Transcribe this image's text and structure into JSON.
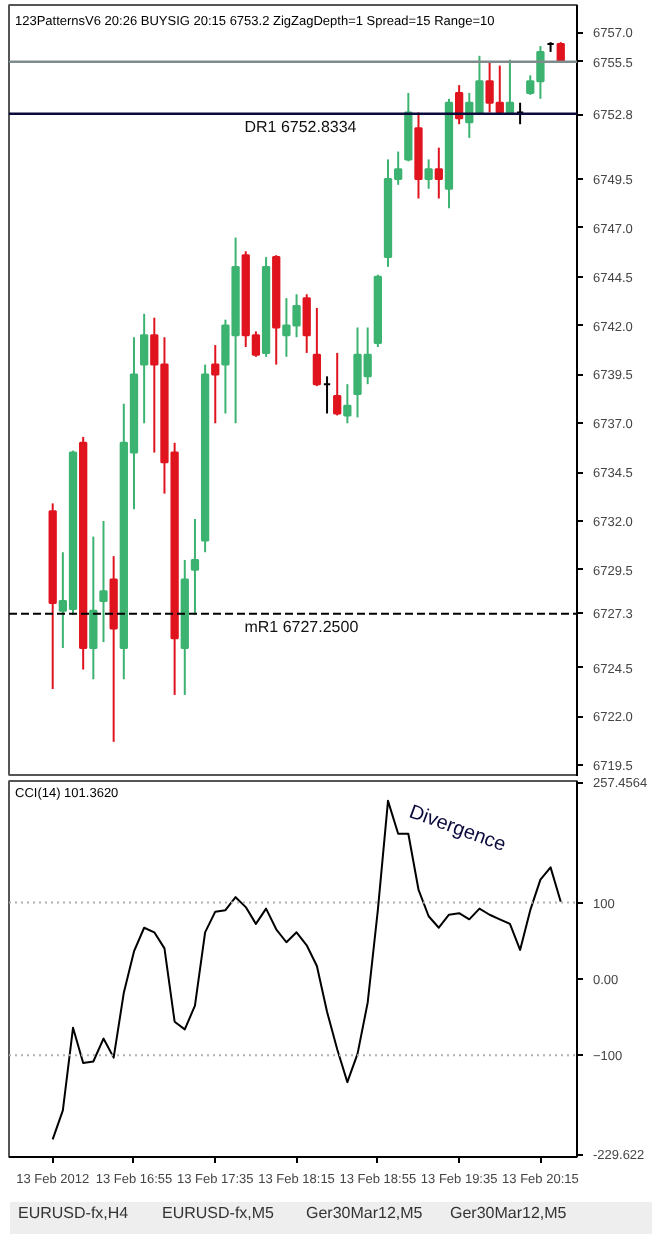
{
  "chart_data": [
    {
      "type": "candlestick",
      "title": "123PatternsV6  20:26  BUYSIG  20:15  6753.2  ZigZagDepth=1  Spread=15  Range=10",
      "categories": [
        null,
        null,
        null,
        null,
        null,
        null,
        null,
        null,
        null,
        null,
        null,
        null,
        null,
        null,
        null,
        null,
        null,
        null,
        null,
        null,
        null,
        null,
        null,
        null,
        null,
        null,
        null,
        null,
        null,
        null,
        null,
        null,
        null,
        null,
        null,
        null,
        null,
        null,
        null,
        null,
        null,
        null,
        null,
        null,
        null,
        null,
        null,
        null,
        null,
        null,
        null
      ],
      "ohlc": [
        [
          6732.5,
          6732.9,
          6723.4,
          6727.8
        ],
        [
          6727.4,
          6730.4,
          6725.5,
          6727.9
        ],
        [
          6727.5,
          6735.6,
          6727.2,
          6735.5
        ],
        [
          6736.0,
          6736.3,
          6724.4,
          6725.5
        ],
        [
          6725.5,
          6731.2,
          6723.9,
          6727.4
        ],
        [
          6727.9,
          6732.0,
          6725.8,
          6728.4
        ],
        [
          6729.0,
          6730.2,
          6720.7,
          6726.5
        ],
        [
          6725.5,
          6738.0,
          6723.9,
          6736.0
        ],
        [
          6735.5,
          6741.4,
          6732.6,
          6739.5
        ],
        [
          6740.0,
          6742.6,
          6737.0,
          6741.5
        ],
        [
          6741.5,
          6742.4,
          6735.5,
          6740.0
        ],
        [
          6740.0,
          6741.4,
          6733.4,
          6735.0
        ],
        [
          6735.5,
          6736.0,
          6723.1,
          6726.0
        ],
        [
          6725.5,
          6730.0,
          6723.1,
          6729.0
        ],
        [
          6729.5,
          6732.1,
          6727.2,
          6730.0
        ],
        [
          6731.0,
          6740.0,
          6730.4,
          6739.5
        ],
        [
          6740.0,
          6741.0,
          6737.0,
          6739.5
        ],
        [
          6740.0,
          6742.3,
          6737.5,
          6742.0
        ],
        [
          6741.5,
          6746.5,
          6737.0,
          6745.0
        ],
        [
          6745.6,
          6745.8,
          6740.9,
          6741.5
        ],
        [
          6741.5,
          6741.7,
          6740.4,
          6740.5
        ],
        [
          6740.6,
          6745.5,
          6740.4,
          6745.0
        ],
        [
          6745.5,
          6745.6,
          6740.0,
          6741.9
        ],
        [
          6741.5,
          6743.4,
          6740.4,
          6742.0
        ],
        [
          6742.0,
          6743.6,
          6741.4,
          6743.0
        ],
        [
          6743.4,
          6743.6,
          6740.6,
          6741.5
        ],
        [
          6740.5,
          6742.9,
          6738.9,
          6739.0
        ],
        [
          6739.0,
          6739.4,
          6737.5,
          6739.0
        ],
        [
          6738.4,
          6740.6,
          6737.4,
          6737.5
        ],
        [
          6737.4,
          6739.0,
          6737.0,
          6737.9
        ],
        [
          6738.5,
          6741.9,
          6737.3,
          6740.5
        ],
        [
          6739.4,
          6741.9,
          6739.0,
          6740.5
        ],
        [
          6741.1,
          6744.6,
          6740.9,
          6744.5
        ],
        [
          6745.5,
          6750.5,
          6745.0,
          6749.5
        ],
        [
          6749.5,
          6750.9,
          6749.2,
          6750.0
        ],
        [
          6750.5,
          6753.9,
          6750.4,
          6752.9
        ],
        [
          6752.1,
          6752.9,
          6748.5,
          6749.5
        ],
        [
          6749.5,
          6750.5,
          6749.0,
          6750.0
        ],
        [
          6750.0,
          6751.1,
          6748.5,
          6749.5
        ],
        [
          6749.0,
          6753.6,
          6748.0,
          6753.4
        ],
        [
          6753.9,
          6754.3,
          6752.3,
          6752.6
        ],
        [
          6752.4,
          6753.9,
          6751.6,
          6753.4
        ],
        [
          6752.9,
          6755.8,
          6752.9,
          6754.5
        ],
        [
          6754.5,
          6755.5,
          6752.9,
          6753.4
        ],
        [
          6753.4,
          6755.3,
          6752.9,
          6752.9
        ],
        [
          6752.9,
          6755.6,
          6752.9,
          6753.4
        ],
        [
          6752.9,
          6753.4,
          6752.3,
          6752.9
        ],
        [
          6753.9,
          6754.8,
          6753.8,
          6754.5
        ],
        [
          6754.5,
          6756.3,
          6753.6,
          6756.0
        ],
        [
          6756.4,
          6756.5,
          6756.0,
          6756.4
        ],
        [
          6756.4,
          6756.5,
          6755.5,
          6755.5
        ]
      ],
      "colors": [
        "#e0141e",
        "#3cb371",
        "#3cb371",
        "#e0141e",
        "#3cb371",
        "#3cb371",
        "#e0141e",
        "#3cb371",
        "#3cb371",
        "#3cb371",
        "#e0141e",
        "#e0141e",
        "#e0141e",
        "#3cb371",
        "#3cb371",
        "#3cb371",
        "#e0141e",
        "#3cb371",
        "#3cb371",
        "#e0141e",
        "#e0141e",
        "#3cb371",
        "#e0141e",
        "#3cb371",
        "#3cb371",
        "#e0141e",
        "#e0141e",
        "#000000",
        "#e0141e",
        "#3cb371",
        "#3cb371",
        "#3cb371",
        "#3cb371",
        "#3cb371",
        "#3cb371",
        "#3cb371",
        "#e0141e",
        "#3cb371",
        "#e0141e",
        "#3cb371",
        "#e0141e",
        "#3cb371",
        "#3cb371",
        "#e0141e",
        "#e0141e",
        "#3cb371",
        "#000000",
        "#3cb371",
        "#3cb371",
        "#000000",
        "#e0141e"
      ],
      "ylim": [
        6718.9,
        6758.4
      ],
      "yticks": [
        {
          "value": 6719.5,
          "label": "6719.5"
        },
        {
          "value": 6722,
          "label": "6722.0"
        },
        {
          "value": 6724.5,
          "label": "6724.5"
        },
        {
          "value": 6727.3,
          "label": "6727.3"
        },
        {
          "value": 6729.5,
          "label": "6729.5"
        },
        {
          "value": 6732,
          "label": "6732.0"
        },
        {
          "value": 6734.5,
          "label": "6734.5"
        },
        {
          "value": 6737,
          "label": "6737.0"
        },
        {
          "value": 6739.5,
          "label": "6739.5"
        },
        {
          "value": 6742,
          "label": "6742.0"
        },
        {
          "value": 6744.5,
          "label": "6744.5"
        },
        {
          "value": 6747,
          "label": "6747.0"
        },
        {
          "value": 6749.5,
          "label": "6749.5"
        },
        {
          "value": 6752.8,
          "label": "6752.8"
        },
        {
          "value": 6755.5,
          "label": "6755.5"
        },
        {
          "value": 6757,
          "label": "6757.0"
        }
      ],
      "ref_lines": [
        {
          "axis": "y",
          "value": 6755.5,
          "label": null,
          "color": "#7f8c8d",
          "line_style": "solid"
        },
        {
          "axis": "y",
          "value": 6752.8334,
          "label": "DR1   6752.8334",
          "color": "#0b0b3b",
          "line_style": "solid"
        },
        {
          "axis": "y",
          "value": 6727.25,
          "label": "mR1   6727.2500",
          "color": "#000000",
          "line_style": "dashed"
        }
      ],
      "tick_labels": "y",
      "grid": false
    },
    {
      "type": "line",
      "title": "CCI(14) 101.3620",
      "categories": [
        "13 Feb 2012",
        null,
        null,
        null,
        null,
        null,
        null,
        null,
        "13 Feb 16:55",
        null,
        null,
        null,
        null,
        null,
        null,
        null,
        "13 Feb 17:35",
        null,
        null,
        null,
        null,
        null,
        null,
        null,
        "13 Feb 18:15",
        null,
        null,
        null,
        null,
        null,
        null,
        null,
        "13 Feb 18:55",
        null,
        null,
        null,
        null,
        null,
        null,
        null,
        "13 Feb 19:35",
        null,
        null,
        null,
        null,
        null,
        null,
        null,
        "13 Feb 20:15",
        null,
        null
      ],
      "series": [
        {
          "color": "#000000",
          "values": [
            -210,
            -172,
            -64,
            -110,
            -108,
            -78,
            -103,
            -18,
            36,
            67,
            61,
            40,
            -56,
            -66,
            -35,
            61,
            88,
            90,
            107,
            94,
            72,
            92,
            65,
            48,
            61,
            44,
            17,
            -43,
            -92,
            -135,
            -98,
            -31,
            90,
            233,
            190,
            190,
            117,
            82,
            67,
            84,
            86,
            78,
            92,
            84,
            78,
            72,
            38,
            90,
            130,
            146,
            101
          ]
        }
      ],
      "ylim": [
        -233,
        259
      ],
      "yticks": [
        {
          "value": 257.4564,
          "label": "257.4564"
        },
        100,
        {
          "value": 0,
          "label": "0.00"
        },
        -100,
        {
          "value": -229.622,
          "label": "-229.622"
        }
      ],
      "ref_lines": [
        {
          "axis": "y",
          "value": 100,
          "label": null,
          "color": "#b0b0b0",
          "line_style": "dotted"
        },
        {
          "axis": "y",
          "value": -100,
          "label": null,
          "color": "#b0b0b0",
          "line_style": "dotted"
        }
      ],
      "annotations": [
        {
          "text": "Divergence",
          "x": "13 Feb 18:55",
          "y": 205
        },
        "EURUSD-fx,H4",
        "EURUSD-fx,M5",
        "Ger30Mar12,M5",
        "Ger30Mar12,M5"
      ],
      "grid": false
    }
  ]
}
